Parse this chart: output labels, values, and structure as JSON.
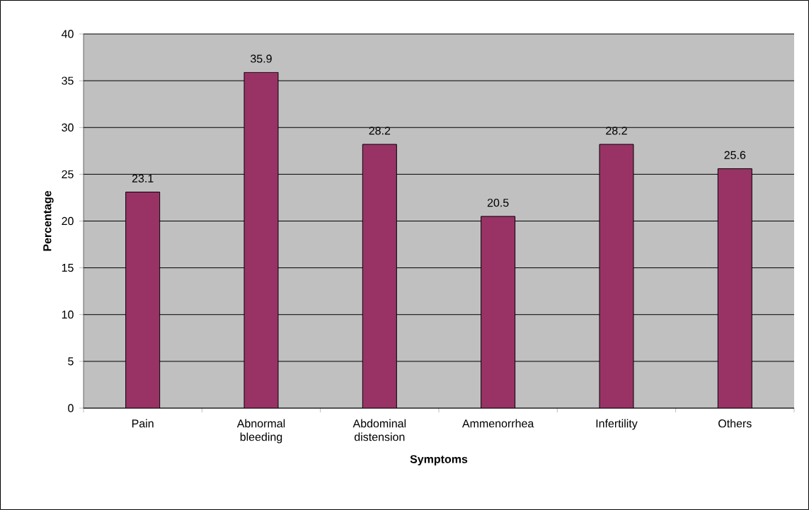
{
  "chart_data": {
    "type": "bar",
    "categories": [
      "Pain",
      "Abnormal bleeding",
      "Abdominal distension",
      "Ammenorrhea",
      "Infertility",
      "Others"
    ],
    "values": [
      23.1,
      35.9,
      28.2,
      20.5,
      28.2,
      25.6
    ],
    "color": "#993366",
    "xlabel": "Symptoms",
    "ylabel": "Percentage",
    "ylim": [
      0,
      40
    ],
    "yticks": [
      0,
      5,
      10,
      15,
      20,
      25,
      30,
      35,
      40
    ],
    "grid": "y",
    "data_labels": true
  }
}
